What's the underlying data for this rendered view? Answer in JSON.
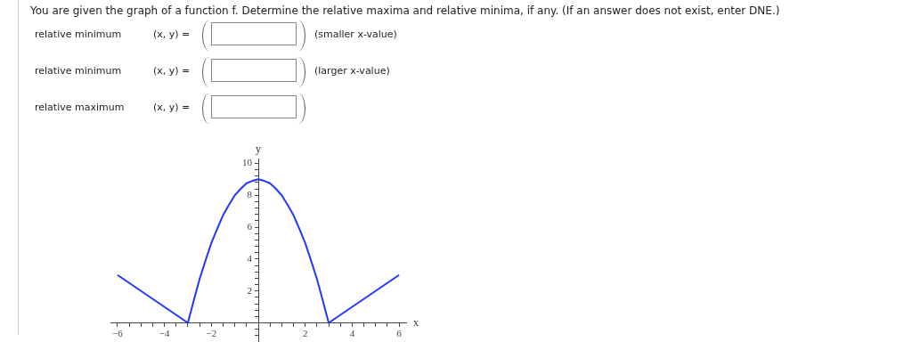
{
  "chart_data": {
    "type": "line",
    "title": "You are given the graph of a function f. Determine the relative maxima and relative minima, if any. (If an answer does not exist, enter DNE.)",
    "annotations": [
      "relative minimum",
      "(x, y) =",
      "(smaller x-value)",
      "relative minimum",
      "(x, y) =",
      "(larger x-value)",
      "relative maximum",
      "(x, y) ="
    ],
    "xlabel": "x",
    "ylabel": "y",
    "series": [
      {
        "color": "#2136ff",
        "x": [
          -6,
          -3,
          -2.75,
          -2.5,
          -2.25,
          -2,
          -1.75,
          -1.5,
          -1.25,
          -1,
          -0.75,
          -0.5,
          -0.25,
          0,
          0.25,
          0.5,
          0.75,
          1,
          1.25,
          1.5,
          1.75,
          2,
          2.25,
          2.5,
          2.75,
          3,
          6
        ],
        "values": [
          3,
          0,
          1.4,
          2.75,
          3.9,
          5,
          5.9,
          6.75,
          7.4,
          8,
          8.4,
          8.75,
          8.9,
          9,
          8.9,
          8.75,
          8.4,
          8,
          7.4,
          6.75,
          5.9,
          5,
          3.9,
          2.75,
          1.4,
          0,
          3
        ]
      }
    ],
    "xlim": [
      -6.3,
      6.3
    ],
    "ylim": [
      -1.2,
      10.3
    ],
    "xticks": [
      -6,
      {
        "value": -5.5,
        "label": null
      },
      {
        "value": -5,
        "label": null
      },
      {
        "value": -4.5,
        "label": null
      },
      -4,
      {
        "value": -3.5,
        "label": null
      },
      {
        "value": -3,
        "label": null
      },
      {
        "value": -2.5,
        "label": null
      },
      -2,
      {
        "value": -1.5,
        "label": null
      },
      {
        "value": -1,
        "label": null
      },
      {
        "value": -0.5,
        "label": null
      },
      {
        "value": 0.5,
        "label": null
      },
      {
        "value": 1,
        "label": null
      },
      {
        "value": 1.5,
        "label": null
      },
      2,
      {
        "value": 2.5,
        "label": null
      },
      {
        "value": 3,
        "label": null
      },
      {
        "value": 3.5,
        "label": null
      },
      4,
      {
        "value": 4.5,
        "label": null
      },
      {
        "value": 5,
        "label": null
      },
      {
        "value": 5.5,
        "label": null
      },
      6
    ],
    "yticks": [
      {
        "value": -0.8,
        "label": null
      },
      {
        "value": -0.4,
        "label": null
      },
      {
        "value": 0.4,
        "label": null
      },
      {
        "value": 0.8,
        "label": null
      },
      {
        "value": 1.2,
        "label": null
      },
      {
        "value": 1.6,
        "label": null
      },
      2,
      {
        "value": 2.4,
        "label": null
      },
      {
        "value": 2.8,
        "label": null
      },
      {
        "value": 3.2,
        "label": null
      },
      {
        "value": 3.6,
        "label": null
      },
      4,
      {
        "value": 4.4,
        "label": null
      },
      {
        "value": 4.8,
        "label": null
      },
      {
        "value": 5.2,
        "label": null
      },
      {
        "value": 5.6,
        "label": null
      },
      6,
      {
        "value": 6.4,
        "label": null
      },
      {
        "value": 6.8,
        "label": null
      },
      {
        "value": 7.2,
        "label": null
      },
      {
        "value": 7.6,
        "label": null
      },
      8,
      {
        "value": 8.4,
        "label": null
      },
      {
        "value": 8.8,
        "label": null
      },
      {
        "value": 9.2,
        "label": null
      },
      {
        "value": 9.6,
        "label": null
      },
      10
    ],
    "grid": false,
    "legend": false,
    "marker": "none",
    "line_style": "solid"
  }
}
